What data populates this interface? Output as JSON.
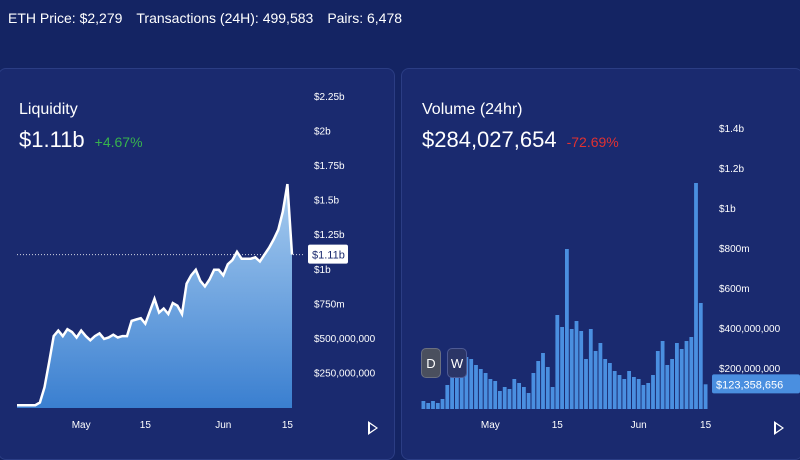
{
  "stats": {
    "eth_price": "ETH Price: $2,279",
    "transactions": "Transactions (24H): 499,583",
    "pairs": "Pairs: 6,478"
  },
  "colors": {
    "background": "#142463",
    "panel": "#1a2a6f",
    "positive": "#37b24d",
    "negative": "#e03131",
    "bar": "#4a8fe0",
    "area_top": "#a9cdf0",
    "area_bottom": "#3a7fd0"
  },
  "liquidity": {
    "title": "Liquidity",
    "value": "$1.11b",
    "change": "+4.67%",
    "current_label": "$1.11b"
  },
  "volume": {
    "title": "Volume (24hr)",
    "value": "$284,027,654",
    "change": "-72.69%",
    "current_label": "$123,358,656",
    "buttons": {
      "day": "D",
      "week": "W"
    }
  },
  "chart_data": [
    {
      "type": "area",
      "title": "Liquidity",
      "unit": "USD",
      "ylim": [
        0,
        2250000000
      ],
      "x_ticks": [
        {
          "label": "May",
          "day": 14
        },
        {
          "label": "15",
          "day": 28
        },
        {
          "label": "Jun",
          "day": 45
        },
        {
          "label": "15",
          "day": 59
        }
      ],
      "y_ticks": [
        {
          "label": "$250,000,000",
          "value": 250000000
        },
        {
          "label": "$500,000,000",
          "value": 500000000
        },
        {
          "label": "$750m",
          "value": 750000000
        },
        {
          "label": "$1b",
          "value": 1000000000
        },
        {
          "label": "$1.25b",
          "value": 1250000000
        },
        {
          "label": "$1.5b",
          "value": 1500000000
        },
        {
          "label": "$1.75b",
          "value": 1750000000
        },
        {
          "label": "$2b",
          "value": 2000000000
        },
        {
          "label": "$2.25b",
          "value": 2250000000
        }
      ],
      "current_value": 1110000000,
      "points": [
        [
          0,
          20000000
        ],
        [
          2,
          20000000
        ],
        [
          4,
          20000000
        ],
        [
          5,
          40000000
        ],
        [
          6,
          150000000
        ],
        [
          7,
          330000000
        ],
        [
          8,
          520000000
        ],
        [
          9,
          560000000
        ],
        [
          10,
          520000000
        ],
        [
          11,
          570000000
        ],
        [
          12,
          550000000
        ],
        [
          13,
          510000000
        ],
        [
          14,
          560000000
        ],
        [
          15,
          520000000
        ],
        [
          16,
          490000000
        ],
        [
          17,
          520000000
        ],
        [
          18,
          540000000
        ],
        [
          19,
          500000000
        ],
        [
          20,
          510000000
        ],
        [
          21,
          530000000
        ],
        [
          22,
          510000000
        ],
        [
          23,
          520000000
        ],
        [
          24,
          520000000
        ],
        [
          25,
          630000000
        ],
        [
          26,
          640000000
        ],
        [
          27,
          650000000
        ],
        [
          28,
          610000000
        ],
        [
          29,
          700000000
        ],
        [
          30,
          790000000
        ],
        [
          31,
          690000000
        ],
        [
          32,
          720000000
        ],
        [
          33,
          680000000
        ],
        [
          34,
          760000000
        ],
        [
          35,
          740000000
        ],
        [
          36,
          680000000
        ],
        [
          37,
          900000000
        ],
        [
          38,
          960000000
        ],
        [
          39,
          1000000000
        ],
        [
          40,
          920000000
        ],
        [
          41,
          880000000
        ],
        [
          42,
          930000000
        ],
        [
          43,
          1000000000
        ],
        [
          44,
          1000000000
        ],
        [
          45,
          960000000
        ],
        [
          46,
          1040000000
        ],
        [
          47,
          1070000000
        ],
        [
          48,
          1130000000
        ],
        [
          49,
          1080000000
        ],
        [
          50,
          1080000000
        ],
        [
          51,
          1080000000
        ],
        [
          52,
          1090000000
        ],
        [
          53,
          1060000000
        ],
        [
          54,
          1110000000
        ],
        [
          55,
          1160000000
        ],
        [
          56,
          1220000000
        ],
        [
          57,
          1290000000
        ],
        [
          58,
          1420000000
        ],
        [
          59,
          1620000000
        ],
        [
          60,
          1110000000
        ]
      ]
    },
    {
      "type": "bar",
      "title": "Volume (24hr)",
      "unit": "USD",
      "ylim": [
        0,
        1500000000
      ],
      "x_ticks": [
        {
          "label": "May",
          "index": 14
        },
        {
          "label": "15",
          "index": 28
        },
        {
          "label": "Jun",
          "index": 45
        },
        {
          "label": "15",
          "index": 59
        }
      ],
      "y_ticks": [
        {
          "label": "$200,000,000",
          "value": 200000000
        },
        {
          "label": "$400,000,000",
          "value": 400000000
        },
        {
          "label": "$600m",
          "value": 600000000
        },
        {
          "label": "$800m",
          "value": 800000000
        },
        {
          "label": "$1b",
          "value": 1000000000
        },
        {
          "label": "$1.2b",
          "value": 1200000000
        },
        {
          "label": "$1.4b",
          "value": 1400000000
        }
      ],
      "current_value": 123358656,
      "values": [
        40000000,
        30000000,
        40000000,
        30000000,
        50000000,
        120000000,
        170000000,
        200000000,
        220000000,
        260000000,
        250000000,
        220000000,
        200000000,
        180000000,
        150000000,
        140000000,
        90000000,
        110000000,
        100000000,
        150000000,
        130000000,
        110000000,
        80000000,
        180000000,
        240000000,
        280000000,
        210000000,
        110000000,
        470000000,
        410000000,
        800000000,
        400000000,
        440000000,
        390000000,
        250000000,
        400000000,
        290000000,
        330000000,
        250000000,
        230000000,
        190000000,
        170000000,
        150000000,
        190000000,
        160000000,
        150000000,
        120000000,
        130000000,
        170000000,
        290000000,
        340000000,
        220000000,
        250000000,
        330000000,
        300000000,
        340000000,
        360000000,
        1130000000,
        530000000,
        123358656
      ]
    }
  ]
}
